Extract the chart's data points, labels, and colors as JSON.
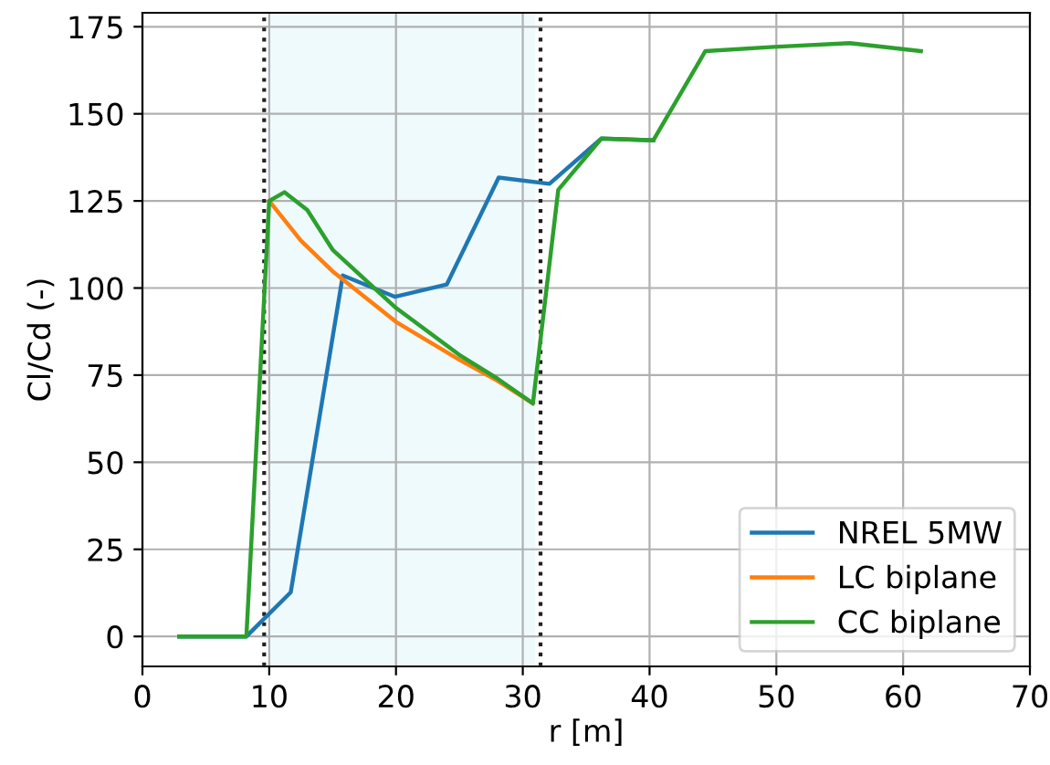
{
  "chart_data": {
    "type": "line",
    "xlabel": "r [m]",
    "ylabel": "Cl/Cd (-)",
    "xlim": [
      0,
      70
    ],
    "ylim": [
      -8.6,
      179
    ],
    "xticks": [
      0,
      10,
      20,
      30,
      40,
      50,
      60,
      70
    ],
    "yticks": [
      0,
      25,
      50,
      75,
      100,
      125,
      150,
      175
    ],
    "grid": true,
    "legend": "bottom right",
    "series": [
      {
        "name": "NREL 5MW",
        "color": "#1f77b4",
        "x": [
          2.9,
          8.2,
          11.7,
          15.8,
          19.9,
          24.0,
          28.1,
          32.1,
          36.2,
          40.3
        ],
        "values": [
          0,
          0,
          12.7,
          103.6,
          97.5,
          101,
          131.7,
          129.9,
          142.9,
          142.4
        ]
      },
      {
        "name": "LC biplane",
        "color": "#ff7f0e",
        "x": [
          10.0,
          12.5,
          15,
          20,
          25,
          28,
          30.8
        ],
        "values": [
          125,
          113.6,
          104.8,
          90.3,
          79.4,
          73.4,
          66.9
        ]
      },
      {
        "name": "CC biplane",
        "color": "#2ca02c",
        "x": [
          2.9,
          8.2,
          10.0,
          11.2,
          13,
          15,
          20,
          25,
          28,
          30.8,
          32.8,
          36.2,
          40.3,
          44.4,
          49.8,
          55.8,
          61.4
        ],
        "values": [
          0,
          0,
          125,
          127.5,
          122.4,
          111,
          94.3,
          80.8,
          74,
          66.9,
          128.2,
          142.9,
          142.4,
          168,
          169.2,
          170.3,
          168
        ]
      }
    ],
    "ref_lines": [
      {
        "axis": "x",
        "value": 9.6,
        "color": "#222222",
        "line_style": "dotted"
      },
      {
        "axis": "x",
        "value": 31.4,
        "color": "#222222",
        "line_style": "dotted"
      }
    ],
    "bands": [
      {
        "axis": "x",
        "from": 10,
        "to": 31,
        "color": "#effafd"
      }
    ]
  }
}
